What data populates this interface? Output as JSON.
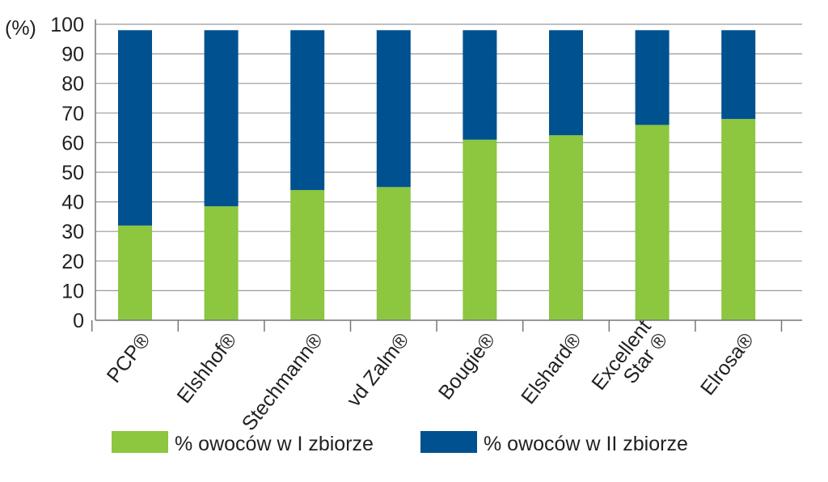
{
  "chart_data": {
    "type": "bar",
    "stacked": true,
    "ylabel": "(%)",
    "ylim": [
      0,
      100
    ],
    "yticks": [
      0,
      10,
      20,
      30,
      40,
      50,
      60,
      70,
      80,
      90,
      100
    ],
    "grid": true,
    "legend_position": "bottom",
    "categories": [
      [
        "PCP®"
      ],
      [
        "Elshhof®"
      ],
      [
        "Stechmann®"
      ],
      [
        "vd Zalm®"
      ],
      [
        "Bougie®"
      ],
      [
        "Elshard®"
      ],
      [
        "Excellent",
        "Star ®"
      ],
      [
        "Elrosa®"
      ]
    ],
    "series": [
      {
        "name": "% owoców w I zbiorze",
        "color": "#8dc63f",
        "values": [
          32,
          38.5,
          44,
          45,
          61,
          62.5,
          66,
          68
        ]
      },
      {
        "name": "% owoców w II zbiorze",
        "color": "#00518f",
        "values": [
          66,
          59.5,
          54,
          53,
          37,
          35.5,
          32,
          30
        ]
      }
    ]
  }
}
